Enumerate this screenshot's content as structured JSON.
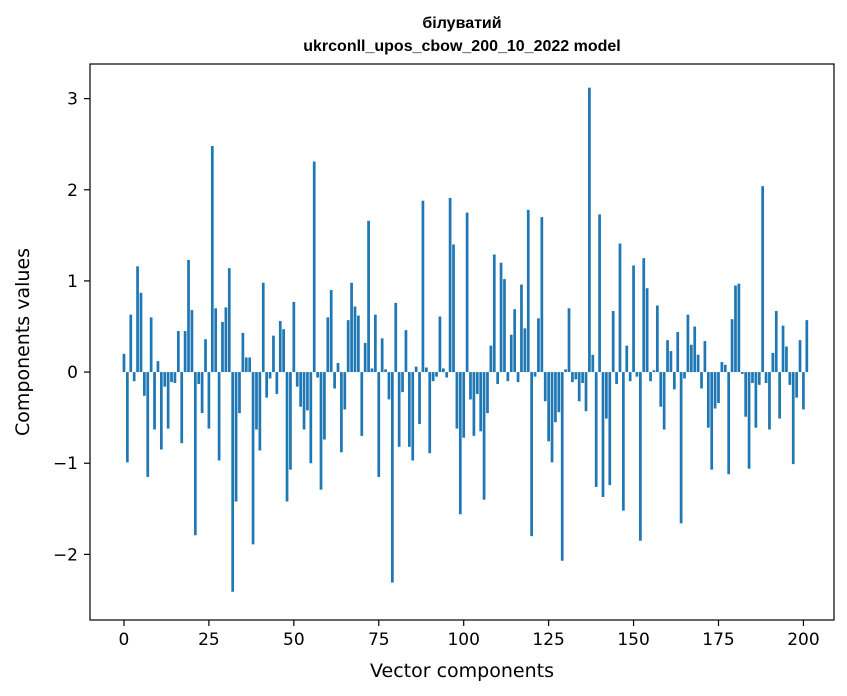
{
  "chart_data": {
    "type": "bar",
    "title_line1": "білуватий",
    "title_line2": "ukrconll_upos_cbow_200_10_2022 model",
    "xlabel": "Vector components",
    "ylabel": "Components values",
    "xlim": [
      -10,
      209
    ],
    "ylim": [
      -2.72,
      3.38
    ],
    "xticks": [
      0,
      25,
      50,
      75,
      100,
      125,
      150,
      175,
      200
    ],
    "xtick_labels": [
      "0",
      "25",
      "50",
      "75",
      "100",
      "125",
      "150",
      "175",
      "200"
    ],
    "yticks": [
      -2,
      -1,
      0,
      1,
      2,
      3
    ],
    "ytick_labels": [
      "−2",
      "−1",
      "0",
      "1",
      "2",
      "3"
    ],
    "grid": false,
    "bar_color": "#1f77b4",
    "values": [
      0.2,
      -0.99,
      0.63,
      -0.1,
      1.16,
      0.87,
      -0.26,
      -1.15,
      0.6,
      -0.63,
      0.12,
      -0.85,
      -0.16,
      -0.62,
      -0.11,
      -0.12,
      0.45,
      -0.78,
      0.45,
      1.23,
      0.68,
      -1.79,
      -0.13,
      -0.45,
      0.36,
      -0.62,
      2.48,
      0.7,
      -0.97,
      0.55,
      0.71,
      1.14,
      -2.41,
      -1.42,
      -0.45,
      0.43,
      0.16,
      0.16,
      -1.89,
      -0.63,
      -0.86,
      0.98,
      -0.28,
      -0.07,
      0.4,
      -0.24,
      0.56,
      0.47,
      -1.42,
      -1.07,
      0.77,
      -0.16,
      -0.38,
      -0.63,
      -0.42,
      -1.0,
      2.31,
      -0.06,
      -1.29,
      -0.74,
      0.6,
      0.9,
      -0.18,
      0.1,
      -0.88,
      -0.41,
      0.57,
      0.98,
      0.72,
      0.62,
      -0.7,
      0.32,
      1.66,
      0.04,
      0.63,
      -1.15,
      0.37,
      0.03,
      -0.3,
      -2.31,
      0.76,
      -0.82,
      -0.22,
      0.46,
      -0.82,
      -0.97,
      0.06,
      -0.57,
      1.88,
      0.05,
      -0.89,
      -0.1,
      -0.05,
      0.61,
      0.04,
      -0.06,
      1.91,
      1.4,
      -0.62,
      -1.56,
      -0.72,
      1.75,
      -0.3,
      -0.7,
      -0.24,
      -0.65,
      -1.4,
      -0.45,
      0.29,
      1.29,
      -0.13,
      1.2,
      1.02,
      -0.1,
      0.41,
      0.69,
      -0.11,
      0.96,
      0.48,
      1.78,
      -1.8,
      -0.05,
      0.59,
      1.7,
      -0.32,
      -0.76,
      -0.99,
      -0.55,
      -0.44,
      -2.07,
      0.03,
      0.7,
      -0.11,
      -0.08,
      -0.32,
      -0.12,
      -0.43,
      3.12,
      0.19,
      -1.26,
      1.73,
      -1.37,
      -0.51,
      -1.24,
      0.67,
      -0.13,
      1.41,
      -1.52,
      0.29,
      -0.1,
      1.17,
      -0.05,
      -1.85,
      1.25,
      0.92,
      -0.1,
      0.02,
      0.73,
      -0.38,
      -0.63,
      0.35,
      0.23,
      -0.19,
      0.44,
      -1.66,
      -0.07,
      0.63,
      0.3,
      0.5,
      0.19,
      -0.18,
      0.34,
      -0.61,
      -1.07,
      -0.4,
      -0.34,
      0.11,
      0.08,
      -1.12,
      0.58,
      0.95,
      0.97,
      -0.02,
      -0.49,
      -1.06,
      -0.12,
      -0.61,
      -0.14,
      2.04,
      -0.12,
      -0.63,
      0.21,
      0.67,
      -0.51,
      0.51,
      0.28,
      -0.14,
      -1.01,
      -0.28,
      0.35,
      -0.41,
      0.57
    ]
  }
}
